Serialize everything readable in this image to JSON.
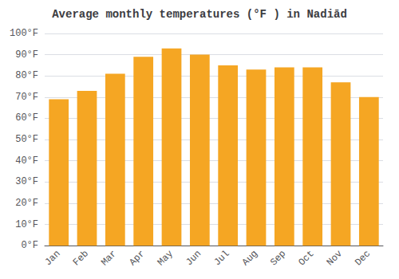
{
  "chart_data": {
    "type": "bar",
    "title": "Average monthly temperatures (°F ) in Nadiād",
    "categories": [
      "Jan",
      "Feb",
      "Mar",
      "Apr",
      "May",
      "Jun",
      "Jul",
      "Aug",
      "Sep",
      "Oct",
      "Nov",
      "Dec"
    ],
    "values": [
      69,
      73,
      81,
      89,
      93,
      90,
      85,
      83,
      84,
      84,
      77,
      70
    ],
    "color": "#F5A623",
    "ylim": [
      0,
      100
    ],
    "yticks": [
      {
        "value": 0,
        "label": "0°F"
      },
      {
        "value": 10,
        "label": "10°F"
      },
      {
        "value": 20,
        "label": "20°F"
      },
      {
        "value": 30,
        "label": "30°F"
      },
      {
        "value": 40,
        "label": "40°F"
      },
      {
        "value": 50,
        "label": "50°F"
      },
      {
        "value": 60,
        "label": "60°F"
      },
      {
        "value": 70,
        "label": "70°F"
      },
      {
        "value": 80,
        "label": "80°F"
      },
      {
        "value": 90,
        "label": "90°F"
      },
      {
        "value": 100,
        "label": "100°F"
      }
    ],
    "grid": true
  }
}
